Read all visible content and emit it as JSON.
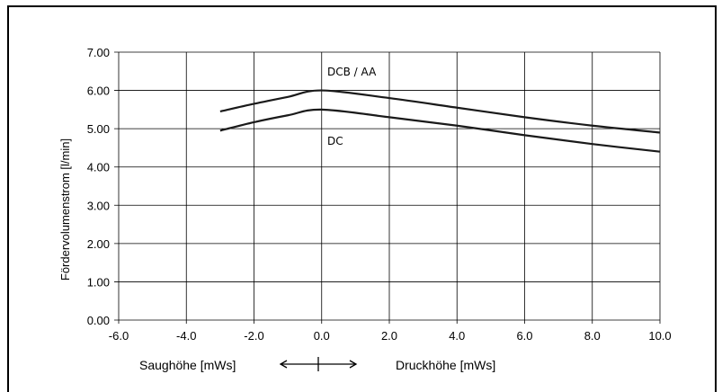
{
  "chart_data": {
    "type": "line",
    "title": "",
    "ylabel": "Fördervolumenstrom [l/min]",
    "xlabel_left": "Saughöhe [mWs]",
    "xlabel_right": "Druckhöhe [mWs]",
    "xlim": [
      -6,
      10
    ],
    "ylim": [
      0,
      7
    ],
    "xticks": [
      "-6.0",
      "-4.0",
      "-2.0",
      "0.0",
      "2.0",
      "4.0",
      "6.0",
      "8.0",
      "10.0"
    ],
    "xtick_values": [
      -6,
      -4,
      -2,
      0,
      2,
      4,
      6,
      8,
      10
    ],
    "yticks": [
      "0.00",
      "1.00",
      "2.00",
      "3.00",
      "4.00",
      "5.00",
      "6.00",
      "7.00"
    ],
    "ytick_values": [
      0,
      1,
      2,
      3,
      4,
      5,
      6,
      7
    ],
    "grid": true,
    "series": [
      {
        "name": "DCB / AA",
        "color": "#1a1a1a",
        "x": [
          -3,
          -2,
          -1,
          0,
          2,
          4,
          6,
          8,
          10
        ],
        "y": [
          5.45,
          5.65,
          5.83,
          6.0,
          5.8,
          5.55,
          5.3,
          5.08,
          4.9
        ]
      },
      {
        "name": "DC",
        "color": "#1a1a1a",
        "x": [
          -3,
          -2,
          -1,
          0,
          2,
          4,
          6,
          8,
          10
        ],
        "y": [
          4.95,
          5.17,
          5.35,
          5.5,
          5.3,
          5.08,
          4.83,
          4.6,
          4.4
        ]
      }
    ]
  }
}
